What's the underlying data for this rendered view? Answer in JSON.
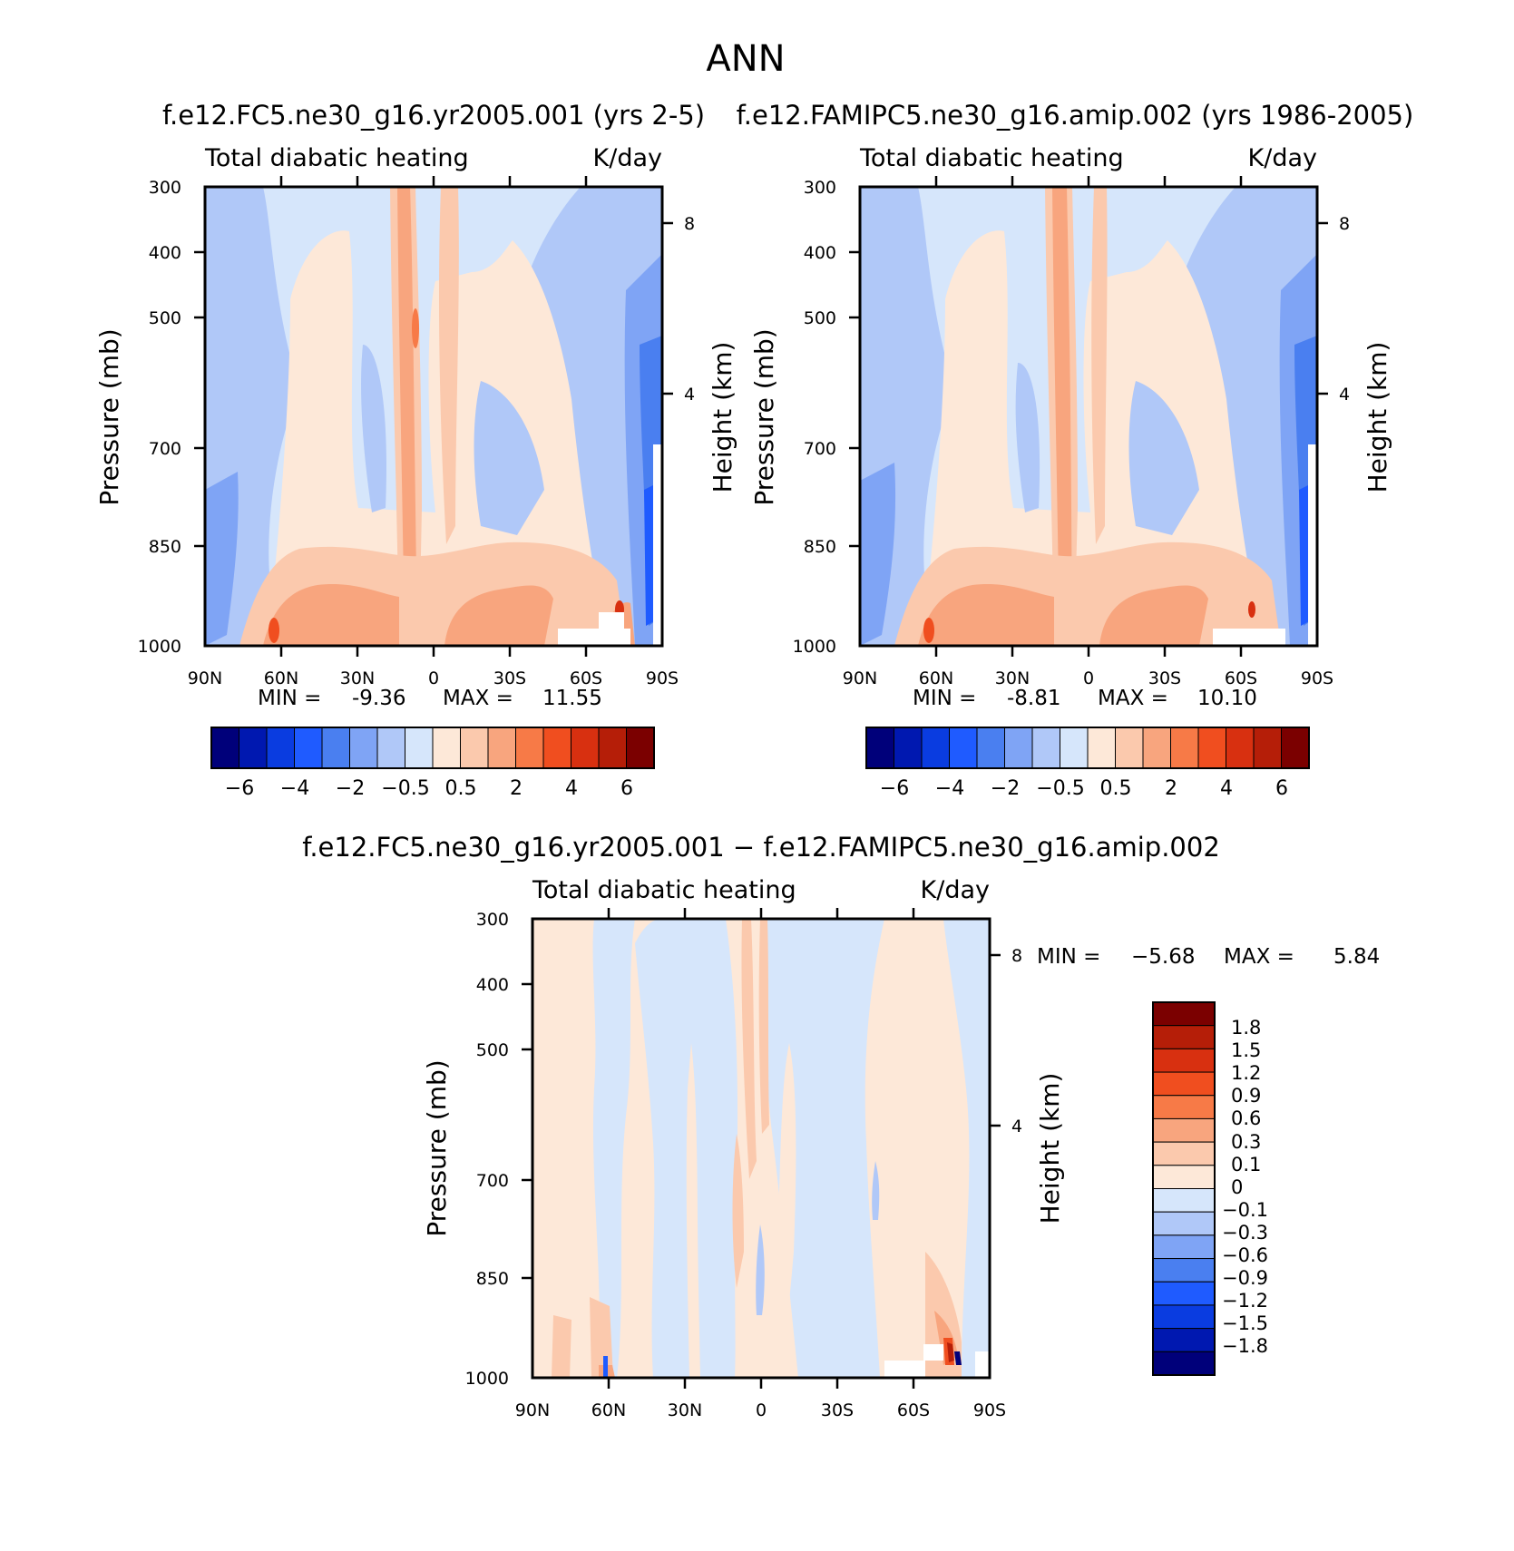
{
  "chart_data": {
    "type": "heatmap",
    "title": "ANN",
    "panels": [
      {
        "id": "test",
        "case_title": "f.e12.FC5.ne30_g16.yr2005.001 (yrs 2-5)",
        "variable": "Total diabatic heating",
        "units": "K/day",
        "ylabel": "Pressure (mb)",
        "y2label": "Height (km)",
        "xticks": [
          "90N",
          "60N",
          "30N",
          "0",
          "30S",
          "60S",
          "90S"
        ],
        "yticks": [
          "300",
          "400",
          "500",
          "700",
          "850",
          "1000"
        ],
        "y2ticks": [
          "8",
          "4"
        ],
        "min_label": "MIN =",
        "min_value": "-9.36",
        "max_label": "MAX =",
        "max_value": "11.55",
        "colorbar_labels": [
          "−6",
          "−4",
          "−2",
          "−0.5",
          "0.5",
          "2",
          "4",
          "6"
        ]
      },
      {
        "id": "control",
        "case_title": "f.e12.FAMIPC5.ne30_g16.amip.002 (yrs 1986-2005)",
        "variable": "Total diabatic heating",
        "units": "K/day",
        "ylabel": "Pressure (mb)",
        "y2label": "Height (km)",
        "xticks": [
          "90N",
          "60N",
          "30N",
          "0",
          "30S",
          "60S",
          "90S"
        ],
        "yticks": [
          "300",
          "400",
          "500",
          "700",
          "850",
          "1000"
        ],
        "y2ticks": [
          "8",
          "4"
        ],
        "min_label": "MIN =",
        "min_value": "-8.81",
        "max_label": "MAX =",
        "max_value": "10.10",
        "colorbar_labels": [
          "−6",
          "−4",
          "−2",
          "−0.5",
          "0.5",
          "2",
          "4",
          "6"
        ]
      },
      {
        "id": "difference",
        "case_title": "f.e12.FC5.ne30_g16.yr2005.001 − f.e12.FAMIPC5.ne30_g16.amip.002",
        "variable": "Total diabatic heating",
        "units": "K/day",
        "ylabel": "Pressure (mb)",
        "y2label": "Height (km)",
        "xticks": [
          "90N",
          "60N",
          "30N",
          "0",
          "30S",
          "60S",
          "90S"
        ],
        "yticks": [
          "300",
          "400",
          "500",
          "700",
          "850",
          "1000"
        ],
        "y2ticks": [
          "8",
          "4"
        ],
        "min_label": "MIN =",
        "min_value": "−5.68",
        "max_label": "MAX =",
        "max_value": "5.84",
        "colorbar_labels": [
          "1.8",
          "1.5",
          "1.2",
          "0.9",
          "0.6",
          "0.3",
          "0.1",
          "0",
          "−0.1",
          "−0.3",
          "−0.6",
          "−0.9",
          "−1.2",
          "−1.5",
          "−1.8"
        ]
      }
    ],
    "colors": {
      "abs_palette": [
        "#00007a",
        "#0018b0",
        "#0a3ce0",
        "#1f5bff",
        "#4a7ff0",
        "#7fa4f5",
        "#b0c8f8",
        "#d6e6fb",
        "#fde8d8",
        "#fbc9ad",
        "#f8a57e",
        "#f77a47",
        "#f04e1f",
        "#d83010",
        "#b51e08",
        "#7b0000"
      ],
      "diff_palette": [
        "#7b0000",
        "#b51e08",
        "#d83010",
        "#f04e1f",
        "#f77a47",
        "#f8a57e",
        "#fbc9ad",
        "#fde8d8",
        "#d6e6fb",
        "#b0c8f8",
        "#7fa4f5",
        "#4a7ff0",
        "#1f5bff",
        "#0a3ce0",
        "#0018b0",
        "#00007a"
      ]
    }
  }
}
